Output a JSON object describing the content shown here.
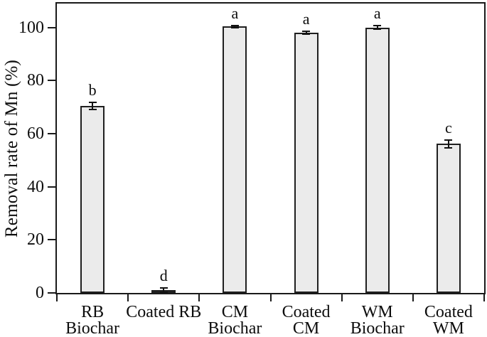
{
  "figure": {
    "background": "#ffffff",
    "axis_color": "#1a1a1a",
    "text_color": "#0d0d0d"
  },
  "chart_data": {
    "type": "bar",
    "title": "",
    "xlabel": "",
    "ylabel": "Removal rate of Mn (%)",
    "ylim": [
      0,
      109
    ],
    "yticks": [
      0,
      20,
      40,
      60,
      80,
      100
    ],
    "grid": false,
    "legend_position": "none",
    "bar_fill_color": "#ebebeb",
    "bar_border_color": "#1f1f1f",
    "error_bar_color": "#111111",
    "categories": [
      "RB Biochar",
      "Coated RB",
      "CM Biochar",
      "Coated CM",
      "WM Biochar",
      "Coated WM"
    ],
    "category_label_lines": [
      [
        "RB",
        "Biochar"
      ],
      [
        "Coated RB"
      ],
      [
        "CM",
        "Biochar"
      ],
      [
        "Coated",
        "CM"
      ],
      [
        "WM",
        "Biochar"
      ],
      [
        "Coated",
        "WM"
      ]
    ],
    "values": [
      70.5,
      1.2,
      100.3,
      98.0,
      100.0,
      56.2
    ],
    "error_bars": [
      1.3,
      0.8,
      0.4,
      0.5,
      0.6,
      1.5
    ],
    "significance_letters": [
      "b",
      "d",
      "a",
      "a",
      "a",
      "c"
    ]
  }
}
